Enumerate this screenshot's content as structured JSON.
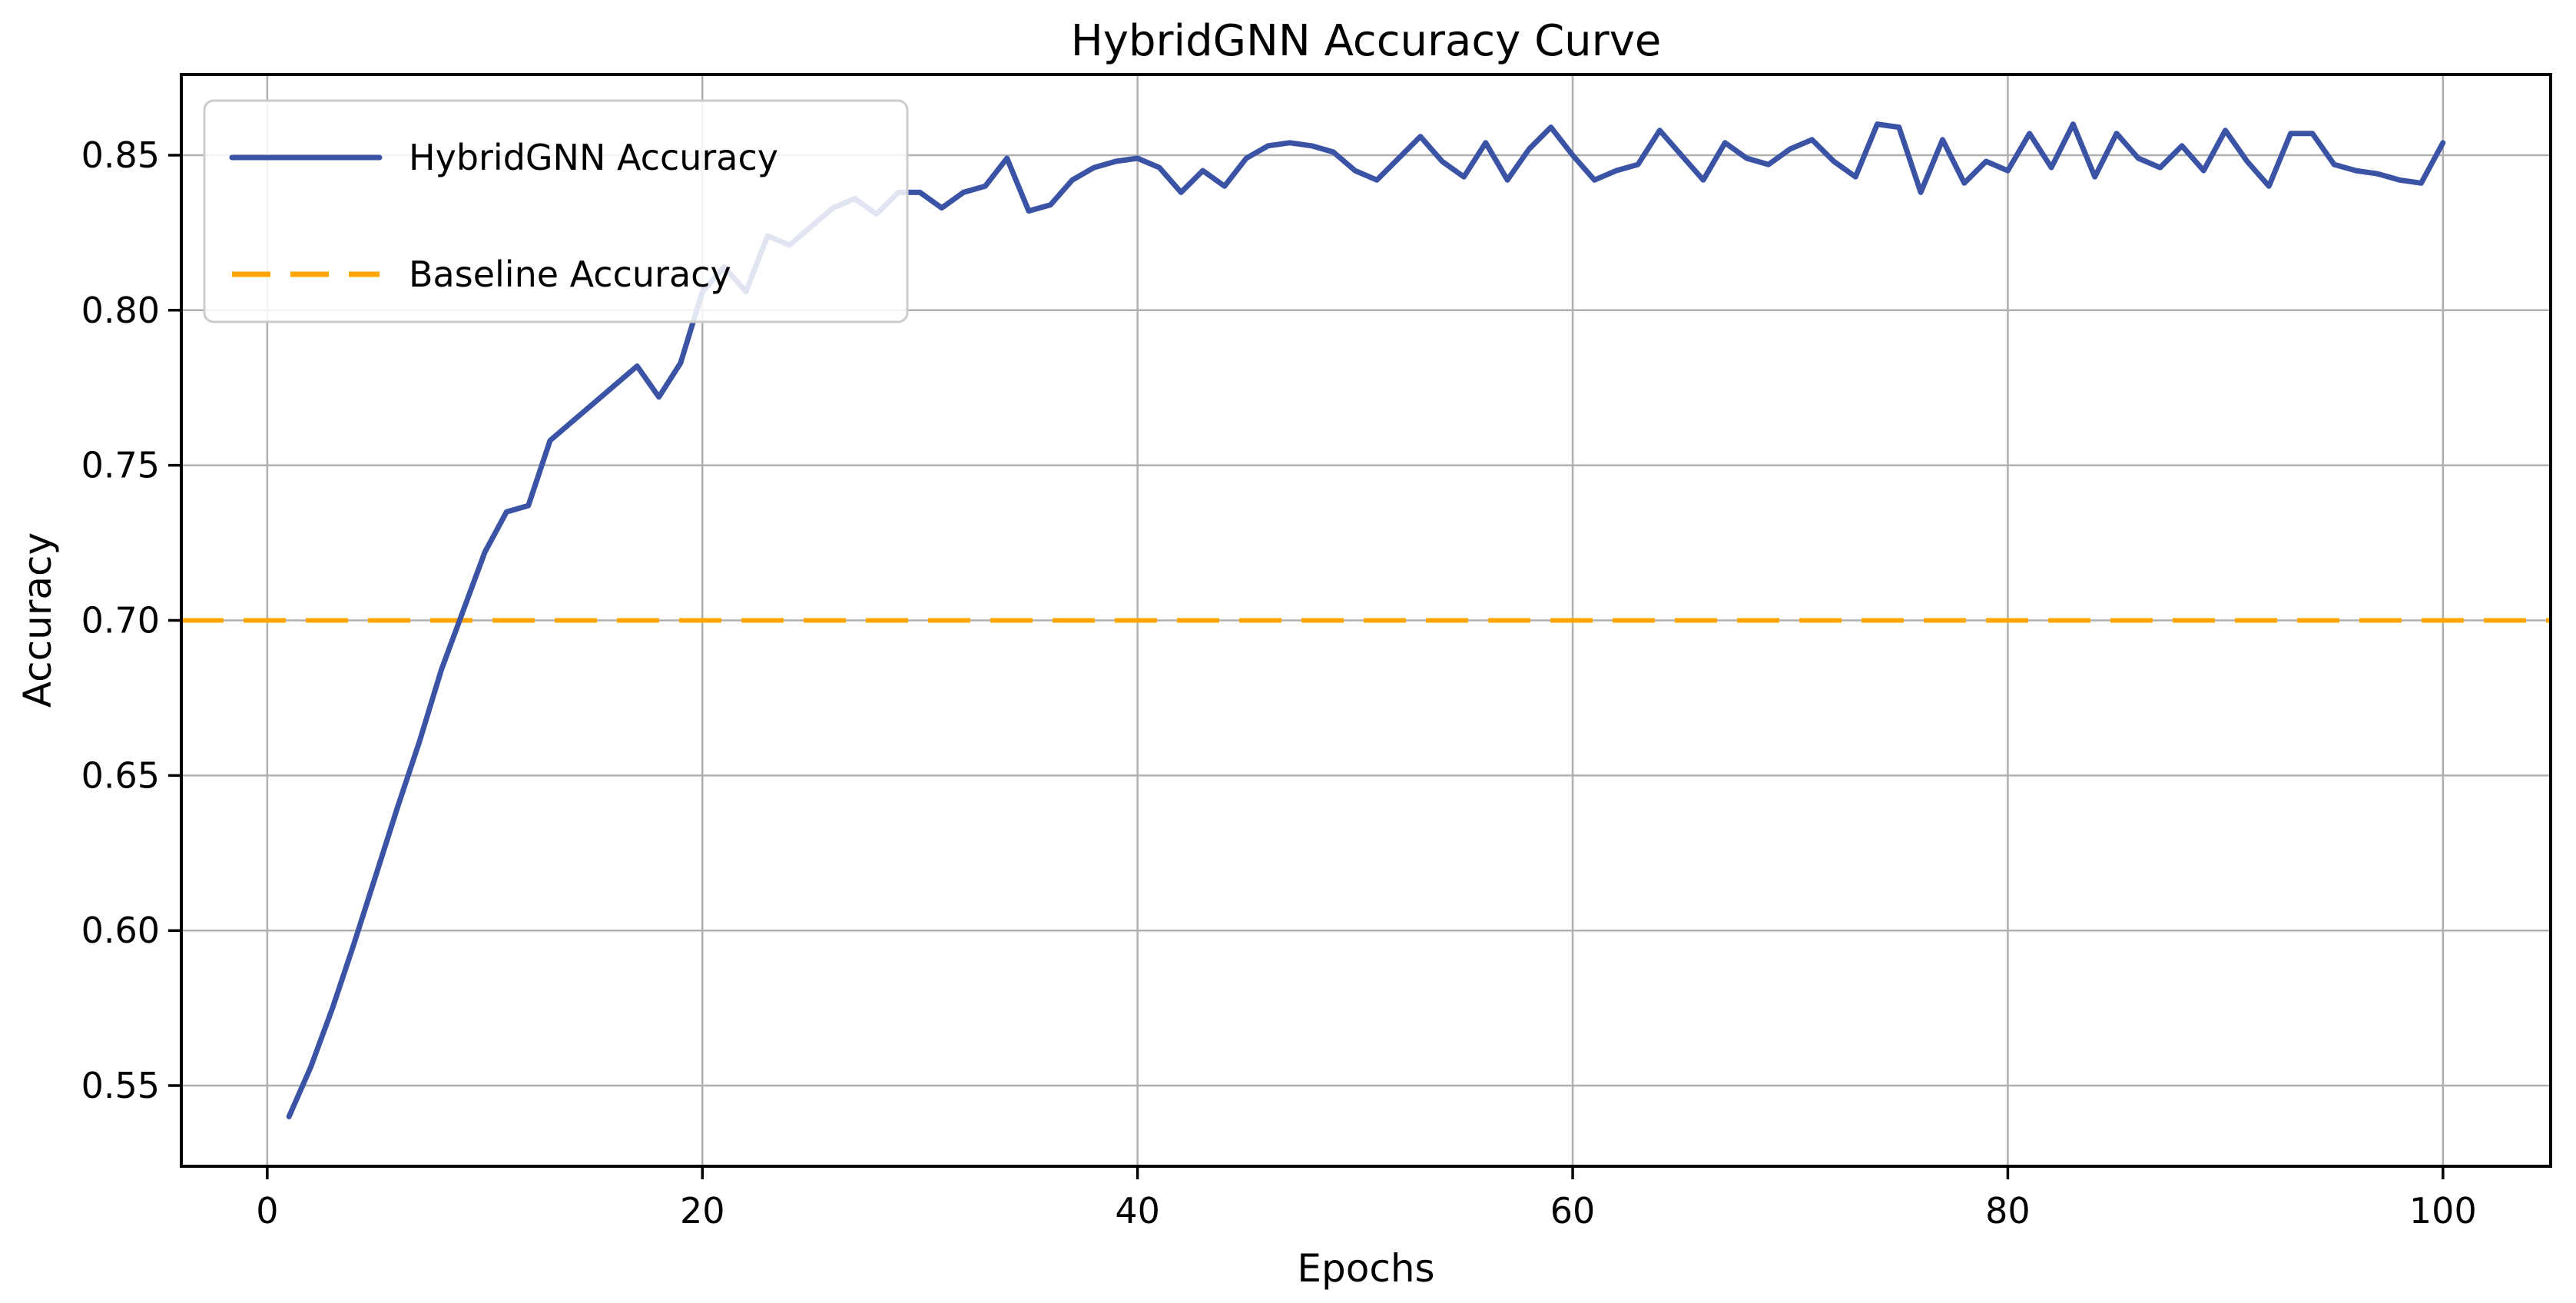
{
  "page": {
    "background": "#ffffff"
  },
  "chart_data": {
    "type": "line",
    "title": "HybridGNN Accuracy Curve",
    "xlabel": "Epochs",
    "ylabel": "Accuracy",
    "grid": true,
    "legend_position": "upper left",
    "x_ticks": [
      0,
      20,
      40,
      60,
      80,
      100
    ],
    "y_ticks": [
      0.55,
      0.6,
      0.65,
      0.7,
      0.75,
      0.8,
      0.85
    ],
    "xlim": [
      -3.95,
      104.95
    ],
    "ylim": [
      0.524,
      0.876
    ],
    "colors": {
      "curve": "#3A53A4",
      "baseline": "#FFA500",
      "grid": "#b0b0b0",
      "axes_edge": "#000000",
      "legend_border": "#cccccc",
      "legend_background": "#ffffff"
    },
    "series": [
      {
        "name": "HybridGNN Accuracy",
        "color": "#3A53A4",
        "style": "solid",
        "x": [
          1,
          2,
          3,
          4,
          5,
          6,
          7,
          8,
          9,
          10,
          11,
          12,
          13,
          14,
          15,
          16,
          17,
          18,
          19,
          20,
          21,
          22,
          23,
          24,
          25,
          26,
          27,
          28,
          29,
          30,
          31,
          32,
          33,
          34,
          35,
          36,
          37,
          38,
          39,
          40,
          41,
          42,
          43,
          44,
          45,
          46,
          47,
          48,
          49,
          50,
          51,
          52,
          53,
          54,
          55,
          56,
          57,
          58,
          59,
          60,
          61,
          62,
          63,
          64,
          65,
          66,
          67,
          68,
          69,
          70,
          71,
          72,
          73,
          74,
          75,
          76,
          77,
          78,
          79,
          80,
          81,
          82,
          83,
          84,
          85,
          86,
          87,
          88,
          89,
          90,
          91,
          92,
          93,
          94,
          95,
          96,
          97,
          98,
          99,
          100
        ],
        "y": [
          0.54,
          0.556,
          0.575,
          0.596,
          0.618,
          0.64,
          0.661,
          0.684,
          0.703,
          0.722,
          0.735,
          0.737,
          0.758,
          0.764,
          0.77,
          0.776,
          0.782,
          0.772,
          0.783,
          0.806,
          0.814,
          0.806,
          0.824,
          0.821,
          0.827,
          0.833,
          0.836,
          0.831,
          0.838,
          0.838,
          0.833,
          0.838,
          0.84,
          0.849,
          0.832,
          0.834,
          0.842,
          0.846,
          0.848,
          0.849,
          0.846,
          0.838,
          0.845,
          0.84,
          0.849,
          0.853,
          0.854,
          0.853,
          0.851,
          0.845,
          0.842,
          0.849,
          0.856,
          0.848,
          0.843,
          0.854,
          0.842,
          0.852,
          0.859,
          0.85,
          0.842,
          0.845,
          0.847,
          0.858,
          0.85,
          0.842,
          0.854,
          0.849,
          0.847,
          0.852,
          0.855,
          0.848,
          0.843,
          0.86,
          0.859,
          0.838,
          0.855,
          0.841,
          0.848,
          0.845,
          0.857,
          0.846,
          0.86,
          0.843,
          0.857,
          0.849,
          0.846,
          0.853,
          0.845,
          0.858,
          0.848,
          0.84,
          0.857,
          0.857,
          0.847,
          0.845,
          0.844,
          0.842,
          0.841,
          0.854
        ]
      },
      {
        "name": "Baseline Accuracy",
        "color": "#FFA500",
        "style": "dashed",
        "baseline_value": 0.7
      }
    ]
  }
}
